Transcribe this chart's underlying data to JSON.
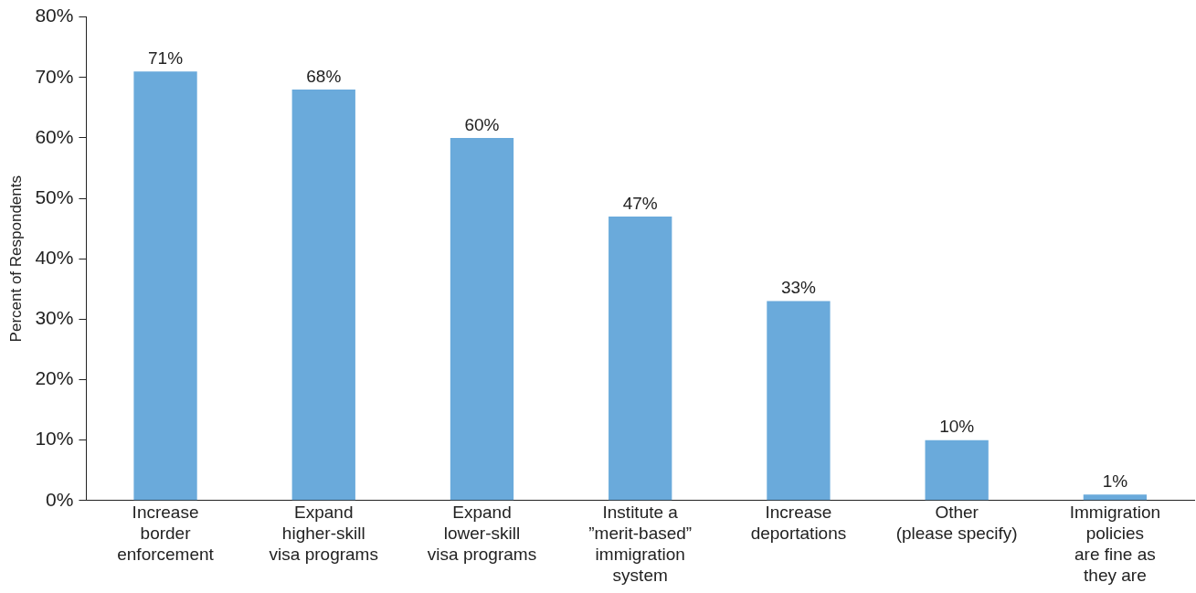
{
  "chart_data": {
    "type": "bar",
    "ylabel": "Percent of Respondents",
    "categories": [
      "Increase\nborder\nenforcement",
      "Expand\nhigher-skill\nvisa programs",
      "Expand\nlower-skill\nvisa programs",
      "Institute a\n”merit-based”\nimmigration\nsystem",
      "Increase\ndeportations",
      "Other\n(please specify)",
      "Immigration\npolicies\nare fine as\nthey are"
    ],
    "values": [
      71,
      68,
      60,
      47,
      33,
      10,
      1
    ],
    "value_labels": [
      "71%",
      "68%",
      "60%",
      "47%",
      "33%",
      "10%",
      "1%"
    ],
    "color": "#6aaadb",
    "ylim": [
      0,
      80
    ],
    "yticks": [
      {
        "value": 0,
        "label": "0%"
      },
      {
        "value": 10,
        "label": "10%"
      },
      {
        "value": 20,
        "label": "20%"
      },
      {
        "value": 30,
        "label": "30%"
      },
      {
        "value": 40,
        "label": "40%"
      },
      {
        "value": 50,
        "label": "50%"
      },
      {
        "value": 60,
        "label": "60%"
      },
      {
        "value": 70,
        "label": "70%"
      },
      {
        "value": 80,
        "label": "80%"
      }
    ],
    "grid": false,
    "legend": false
  }
}
